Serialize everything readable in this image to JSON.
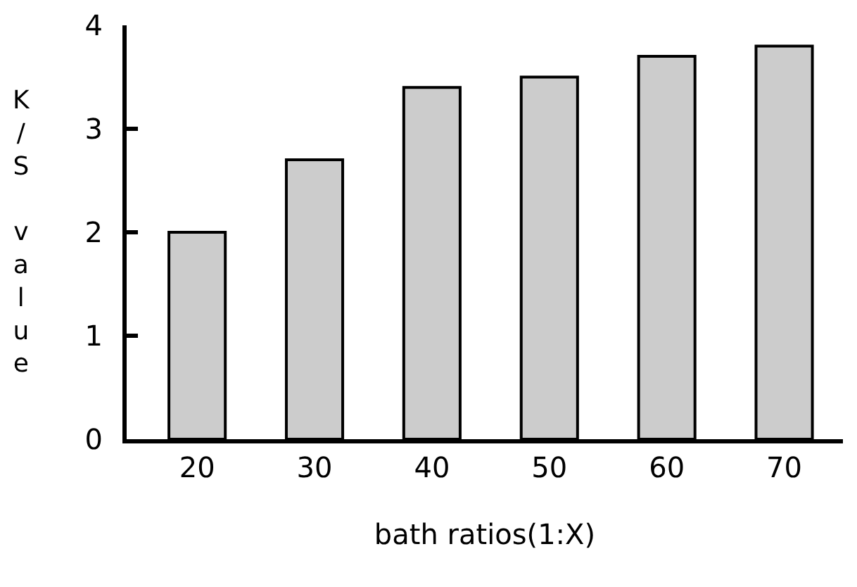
{
  "chart_data": {
    "type": "bar",
    "xlabel": "bath ratios(1:X)",
    "ylabel": "K/S value",
    "categories": [
      "20",
      "30",
      "40",
      "50",
      "60",
      "70"
    ],
    "values": [
      2.0,
      2.7,
      3.4,
      3.5,
      3.7,
      3.8
    ],
    "color": "#cccccc",
    "ylim": [
      0,
      4
    ],
    "yticks": [
      0,
      1,
      2,
      3,
      4
    ],
    "grid": false,
    "legend": false
  }
}
